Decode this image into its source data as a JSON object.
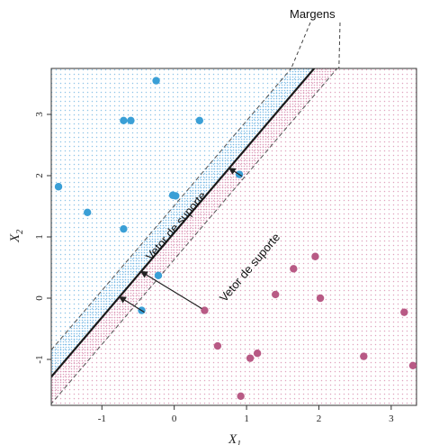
{
  "chart_data": {
    "type": "scatter",
    "title": "",
    "xlabel": "X",
    "xlabel_sub": "1",
    "ylabel": "X",
    "ylabel_sub": "2",
    "xlim": [
      -1.7,
      3.35
    ],
    "ylim": [
      -1.75,
      3.75
    ],
    "x_ticks": [
      -1,
      0,
      1,
      2,
      3
    ],
    "y_ticks": [
      -1,
      0,
      1,
      2,
      3
    ],
    "grid": false,
    "decision_line": {
      "slope": 1.385,
      "intercept": 1.07
    },
    "margin_offset": 0.44,
    "series": [
      {
        "color": "#3a9fd6",
        "points": [
          [
            -0.25,
            3.55
          ],
          [
            -0.7,
            2.9
          ],
          [
            -0.6,
            2.9
          ],
          [
            0.35,
            2.9
          ],
          [
            -1.6,
            1.82
          ],
          [
            -0.02,
            1.68
          ],
          [
            0.02,
            1.67
          ],
          [
            0.9,
            2.02
          ],
          [
            -1.2,
            1.4
          ],
          [
            -0.7,
            1.13
          ],
          [
            -0.22,
            0.37
          ],
          [
            -0.45,
            -0.2
          ]
        ]
      },
      {
        "color": "#b85a85",
        "points": [
          [
            1.95,
            0.68
          ],
          [
            1.65,
            0.48
          ],
          [
            1.4,
            0.06
          ],
          [
            2.02,
            0.0
          ],
          [
            0.42,
            -0.2
          ],
          [
            3.18,
            -0.23
          ],
          [
            0.6,
            -0.78
          ],
          [
            1.15,
            -0.9
          ],
          [
            1.05,
            -0.98
          ],
          [
            2.62,
            -0.95
          ],
          [
            3.3,
            -1.1
          ],
          [
            0.92,
            -1.6
          ]
        ]
      }
    ],
    "annotations": [
      {
        "text": "Margens"
      },
      {
        "text": "Vetor de suporte"
      },
      {
        "text": "Vetor de suporte"
      }
    ],
    "colors": {
      "blue_region": "#9ecfee",
      "pink_region": "#e6a9c4",
      "decision_line": "#1a1a1a",
      "margin_line": "#555555"
    }
  }
}
